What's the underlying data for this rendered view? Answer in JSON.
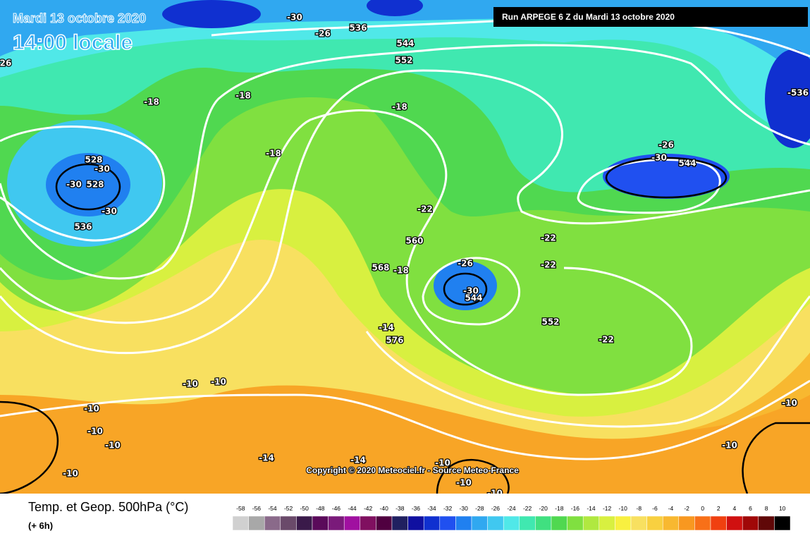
{
  "header": {
    "date": "Mardi 13 octobre 2020",
    "time": "14:00 locale",
    "run": "Run ARPEGE 6 Z du Mardi 13 octobre 2020"
  },
  "copyright": "Copyright © 2020 Meteociel.fr - Source Meteo-France",
  "footer": {
    "title": "Temp. et Geop. 500hPa (°C)",
    "step": "(+ 6h)"
  },
  "scale": {
    "values": [
      -58,
      -56,
      -54,
      -52,
      -50,
      -48,
      -46,
      -44,
      -42,
      -40,
      -38,
      -36,
      -34,
      -32,
      -30,
      -28,
      -26,
      -24,
      -22,
      -20,
      -18,
      -16,
      -14,
      -12,
      -10,
      -8,
      -6,
      -4,
      -2,
      0,
      2,
      4,
      6,
      8,
      10
    ],
    "colors": [
      "#d0d0d0",
      "#a8a8a8",
      "#8a6a8a",
      "#6a4a6a",
      "#3a1a4a",
      "#5a0a5a",
      "#7a1a7a",
      "#a010a0",
      "#801060",
      "#500040",
      "#202060",
      "#1010a0",
      "#1030d0",
      "#2050f0",
      "#2080f0",
      "#30a8f0",
      "#40c8f0",
      "#50e8e8",
      "#40e8b0",
      "#40e080",
      "#50d850",
      "#80e040",
      "#b0e840",
      "#d8f040",
      "#f8f040",
      "#f8e060",
      "#f8d040",
      "#f8b830",
      "#f89820",
      "#f87018",
      "#f04010",
      "#d01010",
      "#a00808",
      "#600808",
      "#000000"
    ]
  },
  "map_labels": [
    "-30",
    "-26",
    "536",
    "544",
    "552",
    "-18",
    "-18",
    "-18",
    "-18",
    "528",
    "-30",
    "-30",
    "528",
    "-30",
    "536",
    "-26",
    "-30",
    "544",
    "-536",
    "-22",
    "560",
    "-22",
    "568",
    "-18",
    "-26",
    "-22",
    "-30",
    "544",
    "552",
    "-14",
    "576",
    "-22",
    "-10",
    "-10",
    "-10",
    "-10",
    "-10",
    "-10",
    "-10",
    "-10",
    "-14",
    "-14",
    "-10",
    "-10",
    "-10",
    "26"
  ]
}
